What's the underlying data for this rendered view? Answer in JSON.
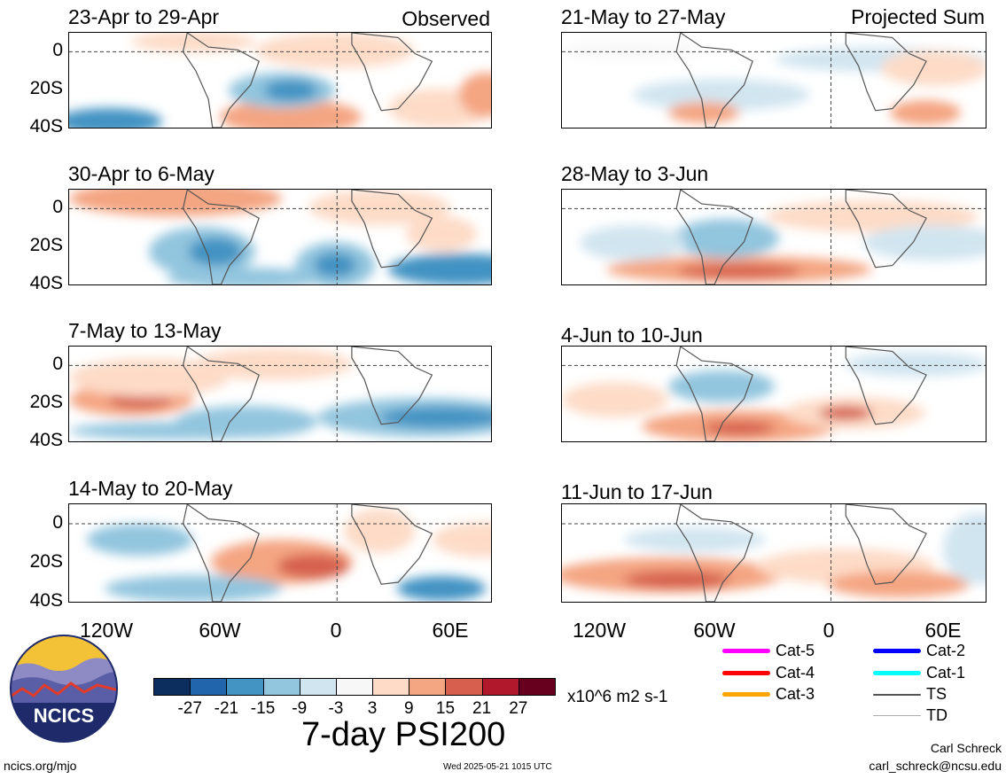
{
  "observed_label": "Observed",
  "projected_label": "Projected Sum",
  "lat_labels": [
    "0",
    "20S",
    "40S"
  ],
  "lon_labels": [
    "120W",
    "60W",
    "0",
    "60E"
  ],
  "panels_left": [
    {
      "title": "23-Apr to 29-Apr"
    },
    {
      "title": "30-Apr to 6-May"
    },
    {
      "title": "7-May to 13-May"
    },
    {
      "title": "14-May to 20-May"
    }
  ],
  "panels_right": [
    {
      "title": "21-May to 27-May"
    },
    {
      "title": "28-May to 3-Jun"
    },
    {
      "title": "4-Jun to 10-Jun"
    },
    {
      "title": "11-Jun to 17-Jun"
    }
  ],
  "colorbar": {
    "colors": [
      "#0b2e5e",
      "#2166ac",
      "#4393c3",
      "#92c5de",
      "#d1e5f0",
      "#f7f7f7",
      "#fddbc7",
      "#f4a582",
      "#d6604d",
      "#b2182b",
      "#67001f"
    ],
    "tick_labels": [
      "-27",
      "-21",
      "-15",
      "-9",
      "-3",
      "3",
      "9",
      "15",
      "21",
      "27"
    ],
    "units": "x10^6 m2 s-1"
  },
  "main_title": "7-day PSI200",
  "legend": [
    {
      "label": "Cat-5",
      "color": "#ff00ff"
    },
    {
      "label": "Cat-4",
      "color": "#ff0000"
    },
    {
      "label": "Cat-3",
      "color": "#ffa500"
    },
    {
      "label": "Cat-2",
      "color": "#0000ff"
    },
    {
      "label": "Cat-1",
      "color": "#00ffff"
    },
    {
      "label": "TS",
      "color": "#555555"
    },
    {
      "label": "TD",
      "color": "#aaaaaa"
    }
  ],
  "logo_text": "NCICS",
  "footer": {
    "url": "ncics.org/mjo",
    "timestamp": "Wed 2025-05-21 1015 UTC",
    "author": "Carl Schreck",
    "email": "carl_schreck@ncsu.edu"
  }
}
